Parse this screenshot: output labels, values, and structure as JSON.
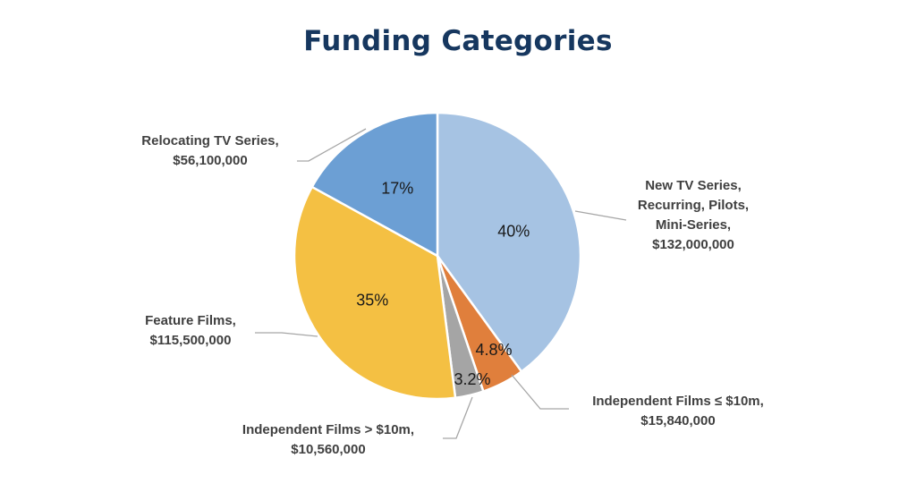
{
  "chart_data": {
    "type": "pie",
    "title": "Funding Categories",
    "slices": [
      {
        "label_lines": [
          "New TV Series,",
          "Recurring, Pilots,",
          "Mini-Series,",
          "$132,000,000"
        ],
        "value": 132000000,
        "percent_label": "40%",
        "color": "#a6c3e3"
      },
      {
        "label_lines": [
          "Independent Films ≤ $10m,",
          "$15,840,000"
        ],
        "value": 15840000,
        "percent_label": "4.8%",
        "color": "#e07f3c"
      },
      {
        "label_lines": [
          "Independent Films > $10m,",
          "$10,560,000"
        ],
        "value": 10560000,
        "percent_label": "3.2%",
        "color": "#a5a5a5"
      },
      {
        "label_lines": [
          "Feature Films,",
          "$115,500,000"
        ],
        "value": 115500000,
        "percent_label": "35%",
        "color": "#f4c043"
      },
      {
        "label_lines": [
          "Relocating TV Series,",
          "$56,100,000"
        ],
        "value": 56100000,
        "percent_label": "17%",
        "color": "#6c9fd4"
      }
    ]
  }
}
